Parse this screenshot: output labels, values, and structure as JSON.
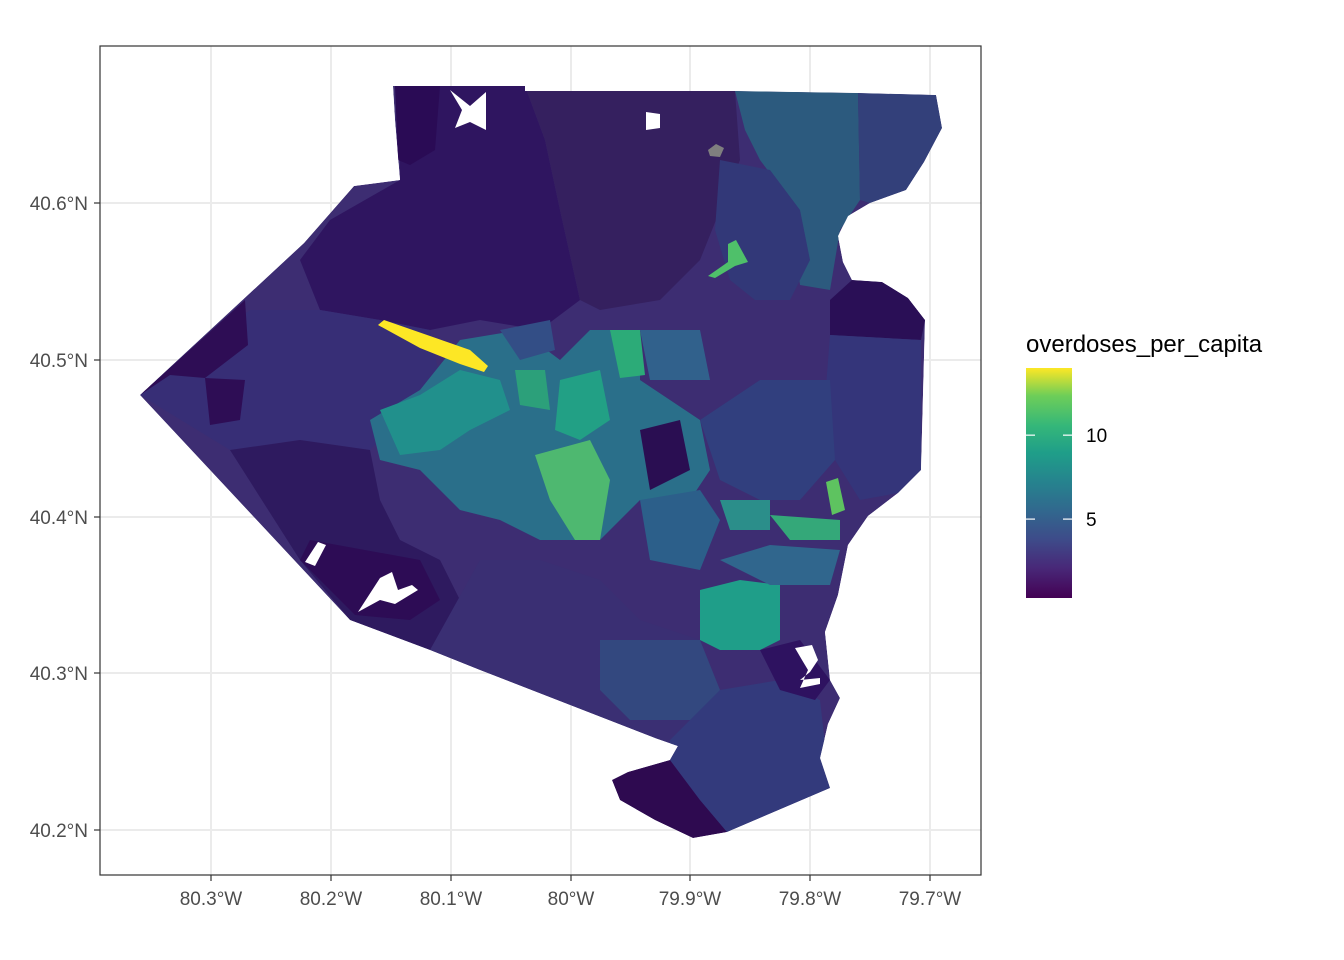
{
  "map": {
    "title": "",
    "legend_title": "overdoses_per_capita",
    "x_tick_labels": [
      "80.3°W",
      "80.2°W",
      "80.1°W",
      "80°W",
      "79.9°W",
      "79.8°W",
      "79.7°W"
    ],
    "y_tick_labels": [
      "40.6°N",
      "40.5°N",
      "40.4°N",
      "40.3°N",
      "40.2°N"
    ],
    "legend_breaks": [
      {
        "value": 10,
        "label": "10"
      },
      {
        "value": 5,
        "label": "5"
      }
    ],
    "legend_range": [
      0.3,
      14.0
    ],
    "palette": "viridis",
    "colors": {
      "panel_border": "#333333",
      "grid": "#ebebeb",
      "low": "#440154",
      "mid": "#21908c",
      "high": "#fde725",
      "missing": "#7f7f7f"
    },
    "grid": true,
    "legend_position": "right"
  }
}
